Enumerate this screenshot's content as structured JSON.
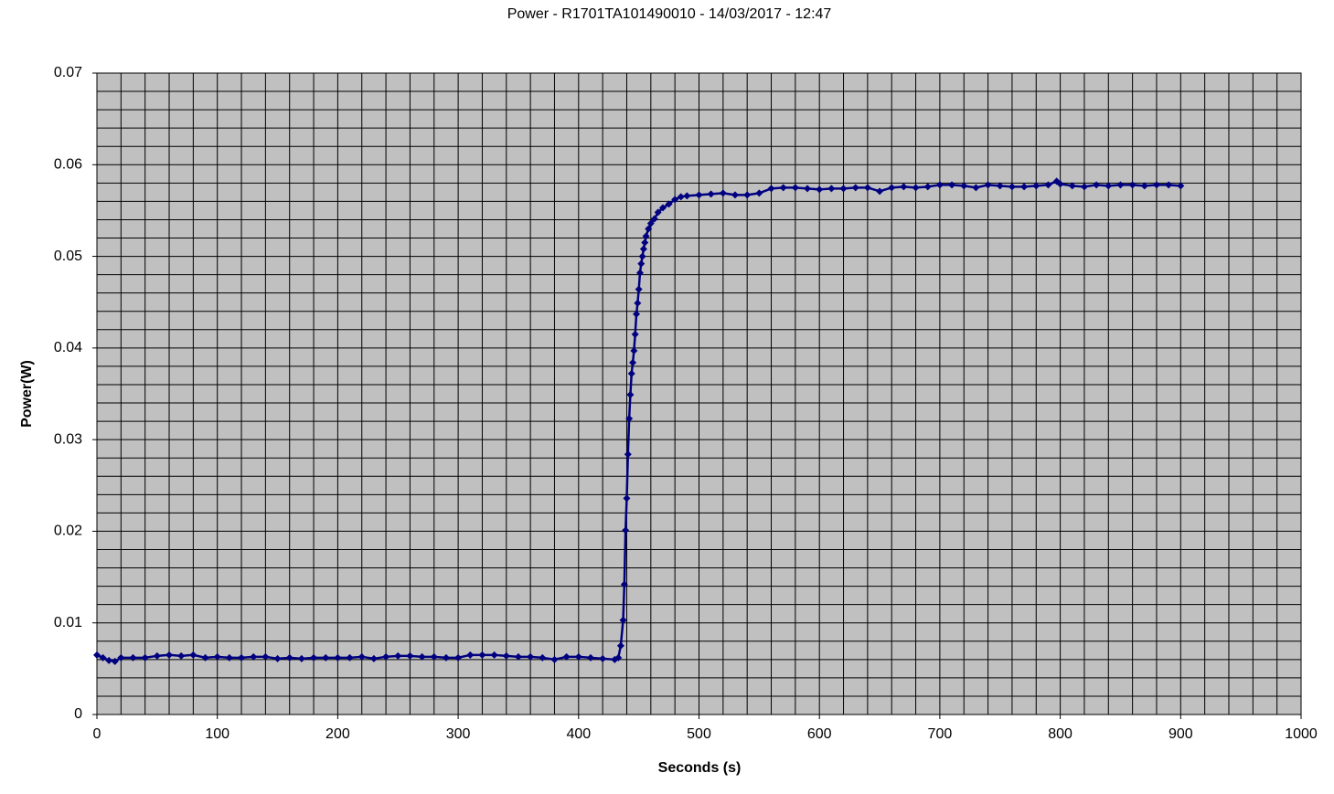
{
  "chart_data": {
    "type": "line",
    "title": "Power - R1701TA101490010 - 14/03/2017 - 12:47",
    "x_label": "Seconds (s)",
    "y_label": "Power(W)",
    "xlim": [
      0,
      1000
    ],
    "ylim": [
      0,
      0.07
    ],
    "xticks": [
      0,
      100,
      200,
      300,
      400,
      500,
      600,
      700,
      800,
      900,
      1000
    ],
    "yticks": [
      0,
      0.01,
      0.02,
      0.03,
      0.04,
      0.05,
      0.06,
      0.07
    ],
    "grid": true,
    "minor_grid": {
      "x": 20,
      "y": 0.002
    },
    "background": "#c0c0c0",
    "x": [
      0,
      5,
      10,
      15,
      20,
      30,
      40,
      50,
      60,
      70,
      80,
      90,
      100,
      110,
      120,
      130,
      140,
      150,
      160,
      170,
      180,
      190,
      200,
      210,
      220,
      230,
      240,
      250,
      260,
      270,
      280,
      290,
      300,
      310,
      320,
      330,
      340,
      350,
      360,
      370,
      380,
      390,
      400,
      410,
      420,
      430,
      433,
      435,
      437,
      438,
      439,
      440,
      441,
      442,
      443,
      444,
      445,
      446,
      447,
      448,
      449,
      450,
      451,
      452,
      453,
      454,
      455,
      456,
      458,
      460,
      463,
      466,
      470,
      475,
      480,
      485,
      490,
      500,
      510,
      520,
      530,
      540,
      550,
      560,
      570,
      580,
      590,
      600,
      610,
      620,
      630,
      640,
      650,
      660,
      670,
      680,
      690,
      700,
      710,
      720,
      730,
      740,
      750,
      760,
      770,
      780,
      790,
      797,
      800,
      810,
      820,
      830,
      840,
      850,
      860,
      870,
      880,
      890,
      900
    ],
    "series": [
      {
        "color": "#000080",
        "values": [
          0.0065,
          0.0062,
          0.0059,
          0.0058,
          0.0062,
          0.0062,
          0.0062,
          0.0064,
          0.0065,
          0.0064,
          0.0065,
          0.0062,
          0.0063,
          0.0062,
          0.0062,
          0.0063,
          0.0063,
          0.0061,
          0.0062,
          0.0061,
          0.0062,
          0.0062,
          0.0062,
          0.0062,
          0.0063,
          0.0061,
          0.0063,
          0.0064,
          0.0064,
          0.0063,
          0.0063,
          0.0062,
          0.0062,
          0.0065,
          0.0065,
          0.0065,
          0.0064,
          0.0063,
          0.0063,
          0.0062,
          0.006,
          0.0063,
          0.0063,
          0.0062,
          0.0061,
          0.006,
          0.0062,
          0.0075,
          0.0103,
          0.0142,
          0.0201,
          0.0236,
          0.0284,
          0.0323,
          0.0349,
          0.0372,
          0.0384,
          0.0397,
          0.0415,
          0.0437,
          0.0449,
          0.0464,
          0.0482,
          0.0492,
          0.05,
          0.0508,
          0.0515,
          0.0522,
          0.053,
          0.0536,
          0.0541,
          0.0548,
          0.0553,
          0.0557,
          0.0562,
          0.0565,
          0.0566,
          0.0567,
          0.0568,
          0.0569,
          0.0567,
          0.0567,
          0.0569,
          0.0574,
          0.0575,
          0.0575,
          0.0574,
          0.0573,
          0.0574,
          0.0574,
          0.0575,
          0.0575,
          0.0571,
          0.0575,
          0.0576,
          0.0575,
          0.0576,
          0.0578,
          0.0578,
          0.0577,
          0.0575,
          0.0578,
          0.0577,
          0.0576,
          0.0576,
          0.0577,
          0.0578,
          0.0582,
          0.0579,
          0.0577,
          0.0576,
          0.0578,
          0.0577,
          0.0578,
          0.0578,
          0.0577,
          0.0578,
          0.0578,
          0.0577
        ]
      }
    ]
  }
}
